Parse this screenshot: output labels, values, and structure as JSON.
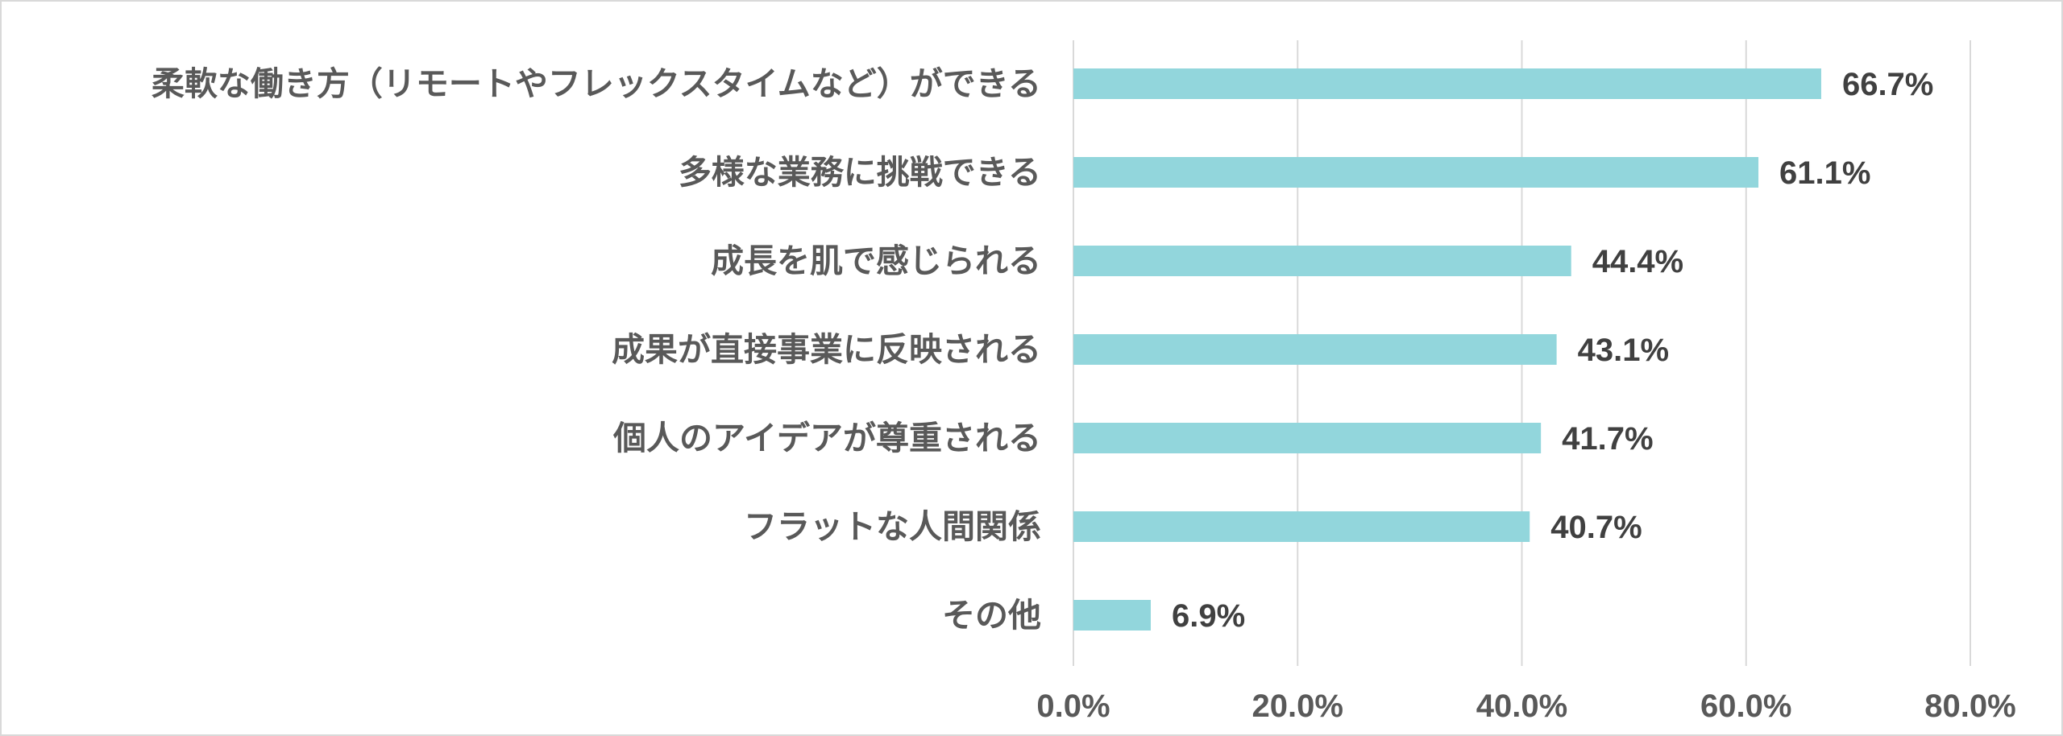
{
  "chart_data": {
    "type": "bar",
    "orientation": "horizontal",
    "categories": [
      "柔軟な働き方（リモートやフレックスタイムなど）ができる",
      "多様な業務に挑戦できる",
      "成長を肌で感じられる",
      "成果が直接事業に反映される",
      "個人のアイデアが尊重される",
      "フラットな人間関係",
      "その他"
    ],
    "values": [
      66.7,
      61.1,
      44.4,
      43.1,
      41.7,
      40.7,
      6.9
    ],
    "value_labels": [
      "66.7%",
      "61.1%",
      "44.4%",
      "43.1%",
      "41.7%",
      "40.7%",
      "6.9%"
    ],
    "xlim": [
      0,
      80
    ],
    "x_ticks": [
      0,
      20,
      40,
      60,
      80
    ],
    "x_tick_labels": [
      "0.0%",
      "20.0%",
      "40.0%",
      "60.0%",
      "80.0%"
    ],
    "grid": true,
    "legend": false,
    "bar_color": "#92d6dc",
    "title": "",
    "xlabel": "",
    "ylabel": ""
  }
}
